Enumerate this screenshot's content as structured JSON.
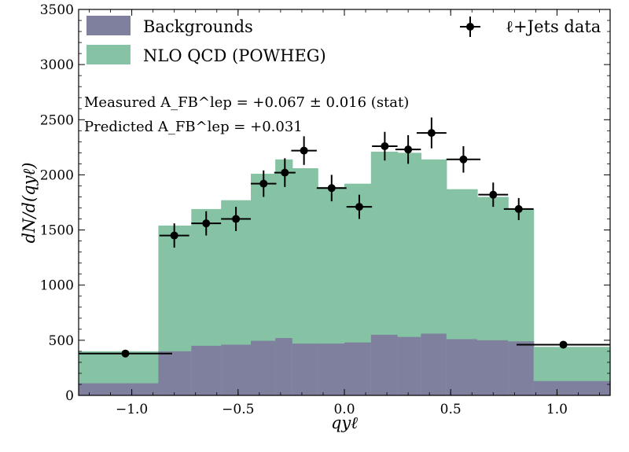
{
  "chart_data": {
    "type": "histogram",
    "title": "",
    "xlabel": "qyℓ",
    "ylabel": "dN/d(qyℓ)",
    "xlim": [
      -1.25,
      1.25
    ],
    "ylim": [
      0,
      3500
    ],
    "bin_edges": [
      -1.25,
      -0.875,
      -0.72,
      -0.58,
      -0.44,
      -0.325,
      -0.245,
      -0.125,
      0.0,
      0.125,
      0.25,
      0.36,
      0.48,
      0.625,
      0.77,
      0.89,
      1.25
    ],
    "series": [
      {
        "name": "Backgrounds",
        "color": "#7f7f9e",
        "values": [
          110,
          400,
          450,
          460,
          495,
          520,
          470,
          470,
          480,
          550,
          530,
          560,
          510,
          500,
          490,
          130
        ]
      },
      {
        "name": "NLO QCD (POWHEG)",
        "color": "#86c3a4",
        "values": [
          400,
          1540,
          1690,
          1770,
          2010,
          2140,
          2060,
          1890,
          1920,
          2210,
          2200,
          2140,
          1870,
          1800,
          1690,
          440
        ]
      }
    ],
    "data_points": {
      "name": "ℓ+Jets data",
      "x": [
        -1.03,
        -0.8,
        -0.65,
        -0.51,
        -0.38,
        -0.28,
        -0.19,
        -0.06,
        0.07,
        0.19,
        0.3,
        0.41,
        0.56,
        0.7,
        0.82,
        1.03
      ],
      "xerr": [
        0.22,
        0.07,
        0.07,
        0.07,
        0.06,
        0.05,
        0.06,
        0.07,
        0.06,
        0.06,
        0.06,
        0.07,
        0.08,
        0.07,
        0.07,
        0.22
      ],
      "y": [
        380,
        1450,
        1560,
        1600,
        1920,
        2020,
        2220,
        1880,
        1710,
        2260,
        2230,
        2380,
        2140,
        1820,
        1690,
        460
      ],
      "yerr": [
        0,
        110,
        110,
        110,
        120,
        130,
        130,
        120,
        110,
        130,
        130,
        140,
        120,
        110,
        100,
        0
      ]
    },
    "x_ticks": [
      -1.0,
      -0.5,
      0.0,
      0.5,
      1.0
    ],
    "x_tick_labels": [
      "−1.0",
      "−0.5",
      "0.0",
      "0.5",
      "1.0"
    ],
    "y_ticks": [
      0,
      500,
      1000,
      1500,
      2000,
      2500,
      3000,
      3500
    ],
    "y_tick_labels": [
      "0",
      "500",
      "1000",
      "1500",
      "2000",
      "2500",
      "3000",
      "3500"
    ],
    "legend": {
      "placement": "top-left and top-right",
      "entries": [
        "Backgrounds",
        "NLO QCD (POWHEG)",
        "ℓ+Jets data"
      ]
    },
    "annotations": [
      {
        "name": "measured",
        "text": "Measured A_FB^lep = +0.067 ± 0.016 (stat)"
      },
      {
        "name": "predicted",
        "text": "Predicted A_FB^lep = +0.031"
      }
    ]
  }
}
